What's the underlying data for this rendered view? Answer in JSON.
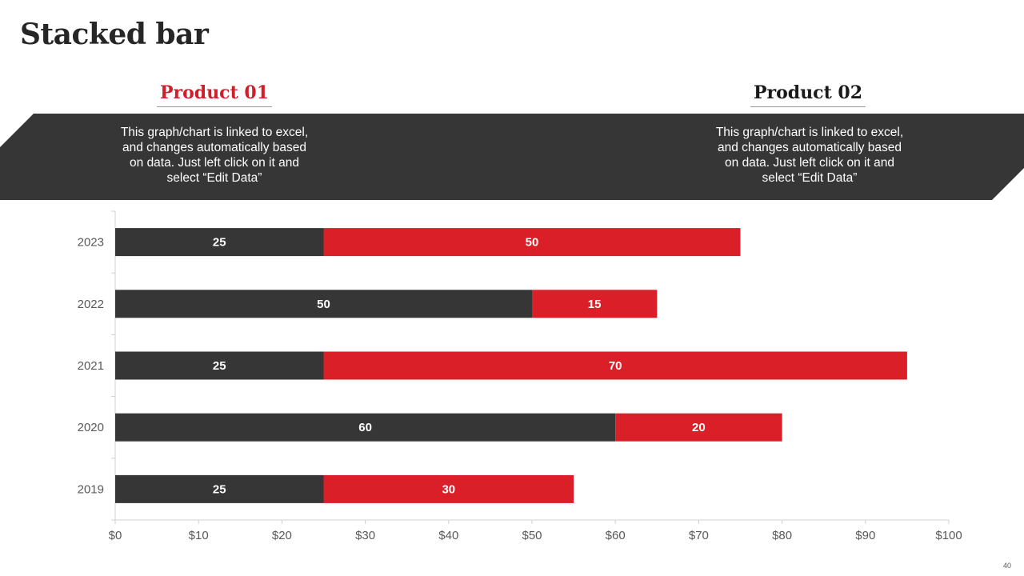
{
  "slide": {
    "title": "Stacked bar",
    "page_number": "40"
  },
  "products": [
    {
      "name": "Product 01",
      "description": "This graph/chart is linked to excel, and changes automatically based on data. Just left click on it and select “Edit Data”"
    },
    {
      "name": "Product 02",
      "description": "This graph/chart is linked to excel, and changes automatically based on data. Just left click on it and select “Edit Data”"
    }
  ],
  "colors": {
    "series1": "#363636",
    "series2": "#da1f28",
    "band": "#363636",
    "accent_title": "#d01f2a"
  },
  "chart_data": {
    "type": "bar",
    "orientation": "horizontal",
    "stacked": true,
    "title": "",
    "categories": [
      "2023",
      "2022",
      "2021",
      "2020",
      "2019"
    ],
    "series": [
      {
        "name": "Product 01",
        "values": [
          25,
          50,
          25,
          60,
          25
        ]
      },
      {
        "name": "Product 02",
        "values": [
          50,
          15,
          70,
          20,
          30
        ]
      }
    ],
    "xlim": [
      0,
      100
    ],
    "xticks": [
      0,
      10,
      20,
      30,
      40,
      50,
      60,
      70,
      80,
      90,
      100
    ],
    "tick_labels": [
      "$0",
      "$10",
      "$20",
      "$30",
      "$40",
      "$50",
      "$60",
      "$70",
      "$80",
      "$90",
      "$100"
    ],
    "xlabel": "",
    "ylabel": "",
    "grid": false,
    "legend": "none",
    "data_labels": true
  }
}
